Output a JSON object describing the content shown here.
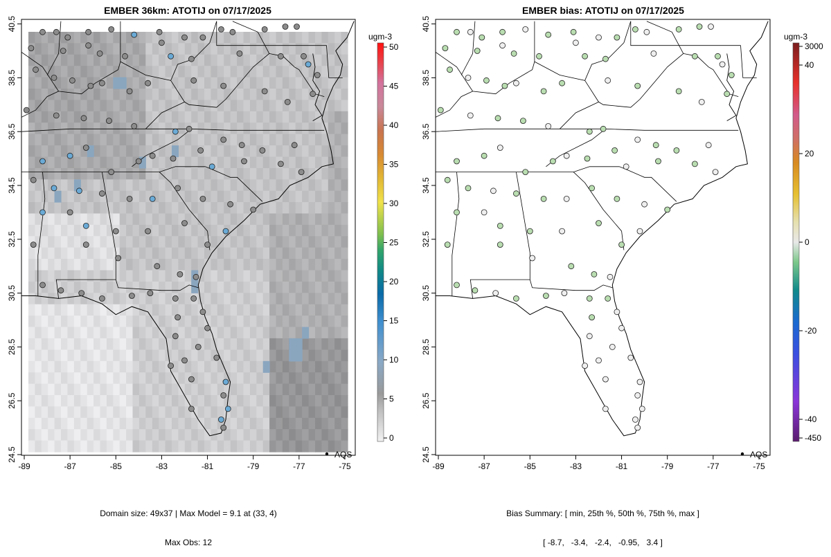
{
  "left_panel": {
    "title": "EMBER 36km: ATOTIJ on 07/17/2025",
    "units": "ugm-3",
    "colorbar_ticks": [
      "0",
      "5",
      "10",
      "15",
      "20",
      "25",
      "30",
      "35",
      "40",
      "45",
      "50"
    ],
    "caption_line1": "Domain size: 49x37 | Max Model = 9.1 at (33, 4)",
    "caption_line2": "Max Obs: 12",
    "legend_label": "AQS"
  },
  "right_panel": {
    "title": "EMBER bias: ATOTIJ on 07/17/2025",
    "units": "ugm-3",
    "colorbar_ticks": [
      "-450",
      "-40",
      "-20",
      "0",
      "20",
      "40",
      "3000"
    ],
    "caption_line1": "Bias Summary: [ min, 25th %, 50th %, 75th %, max ]",
    "caption_line2": "[ -8.7,   -3.4,   -2.4,   -0.95,   3.4 ]",
    "legend_label": "AQS"
  },
  "axes": {
    "x_ticks": [
      "-89",
      "-87",
      "-85",
      "-83",
      "-81",
      "-79",
      "-77",
      "-75"
    ],
    "y_ticks": [
      "24.5",
      "26.5",
      "28.5",
      "30.5",
      "32.5",
      "34.5",
      "36.5",
      "38.5",
      "40.5"
    ]
  },
  "colors": {
    "grid_light": "#e4e4e4",
    "grid_mid": "#c8c8c8",
    "grid_dark": "#a8a8a8",
    "grid_sea": "#9aa0a6",
    "site_gray": "#8c8c8c",
    "site_blue": "#6aaad6",
    "bias_green": "#b9ddb0",
    "bias_white": "#efefef"
  }
}
